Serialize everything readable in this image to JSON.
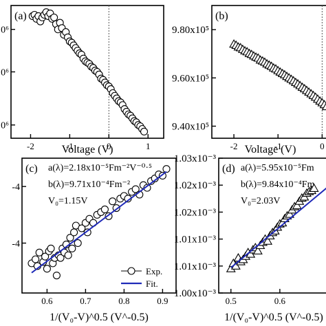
{
  "chart_data": [
    {
      "panel": "(a)",
      "type": "scatter",
      "marker": "circle",
      "xlabel": "Voltage (V)",
      "ylabel": "",
      "xlim": [
        -2.5,
        1.4
      ],
      "ylim": [
        0.0,
        1.0
      ],
      "xticks": [
        "-2",
        "-1",
        "0",
        "1"
      ],
      "xtick_values": [
        -2,
        -1,
        0,
        1
      ],
      "yticks_partial": [
        "0⁶",
        "0⁶",
        "0⁶"
      ],
      "ytick_values": [
        0.82,
        0.5,
        0.1
      ],
      "vline_at": 0,
      "series": [
        {
          "x": [
            -1.95,
            -1.9,
            -1.85,
            -1.8,
            -1.75,
            -1.7,
            -1.65,
            -1.6,
            -1.55,
            -1.5,
            -1.45,
            -1.4,
            -1.35,
            -1.3,
            -1.25,
            -1.2,
            -1.15,
            -1.1,
            -1.05,
            -1.0,
            -0.95,
            -0.9,
            -0.85,
            -0.8,
            -0.75,
            -0.7,
            -0.65,
            -0.6,
            -0.55,
            -0.5,
            -0.45,
            -0.4,
            -0.35,
            -0.3,
            -0.25,
            -0.2,
            -0.15,
            -0.1,
            -0.05,
            0.0,
            0.05,
            0.1,
            0.15,
            0.2,
            0.25,
            0.3,
            0.35,
            0.4,
            0.45,
            0.5,
            0.55,
            0.6,
            0.65,
            0.7,
            0.75,
            0.8,
            0.85,
            0.9
          ],
          "y": [
            0.92,
            0.93,
            0.9,
            0.92,
            0.88,
            0.91,
            0.93,
            0.95,
            0.92,
            0.94,
            0.9,
            0.91,
            0.86,
            0.82,
            0.87,
            0.83,
            0.78,
            0.8,
            0.76,
            0.73,
            0.72,
            0.7,
            0.68,
            0.66,
            0.64,
            0.63,
            0.6,
            0.58,
            0.57,
            0.56,
            0.54,
            0.53,
            0.51,
            0.5,
            0.48,
            0.45,
            0.44,
            0.42,
            0.4,
            0.39,
            0.37,
            0.34,
            0.32,
            0.3,
            0.28,
            0.27,
            0.25,
            0.22,
            0.2,
            0.18,
            0.17,
            0.15,
            0.13,
            0.12,
            0.1,
            0.09,
            0.07,
            0.05
          ]
        }
      ]
    },
    {
      "panel": "(b)",
      "type": "scatter",
      "marker": "triangle",
      "xlabel": "Voltage (V)",
      "ylabel": "",
      "xlim": [
        -2.5,
        0.15
      ],
      "ylim": [
        935000.0,
        990000.0
      ],
      "xticks": [
        "-2",
        "-1",
        "0"
      ],
      "xtick_values": [
        -2,
        -1,
        0
      ],
      "yticks": [
        "9.40x10⁵",
        "9.60x10⁵",
        "9.80x10⁵"
      ],
      "ytick_values": [
        940000.0,
        960000.0,
        980000.0
      ],
      "vline_at": 0,
      "series": [
        {
          "x": [
            -2.0,
            -1.95,
            -1.9,
            -1.85,
            -1.8,
            -1.75,
            -1.7,
            -1.65,
            -1.6,
            -1.55,
            -1.5,
            -1.45,
            -1.4,
            -1.35,
            -1.3,
            -1.25,
            -1.2,
            -1.15,
            -1.1,
            -1.05,
            -1.0,
            -0.95,
            -0.9,
            -0.85,
            -0.8,
            -0.75,
            -0.7,
            -0.65,
            -0.6,
            -0.55,
            -0.5,
            -0.45,
            -0.4,
            -0.35,
            -0.3,
            -0.25,
            -0.2,
            -0.15,
            -0.1,
            -0.05,
            0.0,
            0.05,
            0.1
          ],
          "y": [
            974000,
            973500,
            972800,
            972500,
            971800,
            971200,
            970800,
            970100,
            969700,
            969100,
            968600,
            968200,
            967400,
            967000,
            966500,
            965800,
            965300,
            964800,
            964100,
            963700,
            963000,
            962400,
            961800,
            961300,
            960600,
            960000,
            959400,
            958800,
            958100,
            957500,
            956800,
            956100,
            955500,
            954800,
            954100,
            953400,
            952700,
            952000,
            951200,
            950400,
            949700,
            948900,
            948100
          ]
        }
      ]
    },
    {
      "panel": "(c)",
      "type": "scatter",
      "marker": "circle",
      "xlabel": "1/(V₀-V)^0.5  (V^-0.5)",
      "ylabel": "",
      "xlim": [
        0.535,
        0.935
      ],
      "ylim": [
        0.0,
        1.0
      ],
      "xticks": [
        "0.6",
        "0.7",
        "0.8",
        "0.9"
      ],
      "xtick_values": [
        0.6,
        0.7,
        0.8,
        0.9
      ],
      "yticks_partial": [
        "-4",
        "-4"
      ],
      "ytick_values": [
        0.79,
        0.37
      ],
      "annotations": [
        "a(λ)=2.18x10⁻⁵Fm⁻²V⁻⁰·⁵",
        "b(λ)=9.71x10⁻⁴Fm⁻²",
        "V₀=1.15V"
      ],
      "legend": {
        "position": "bottom-right",
        "entries": [
          "Exp.",
          "Fit."
        ]
      },
      "series": [
        {
          "name": "Exp.",
          "x": [
            0.56,
            0.57,
            0.575,
            0.58,
            0.59,
            0.595,
            0.6,
            0.605,
            0.61,
            0.615,
            0.62,
            0.625,
            0.63,
            0.635,
            0.64,
            0.645,
            0.65,
            0.655,
            0.66,
            0.665,
            0.67,
            0.675,
            0.68,
            0.69,
            0.7,
            0.705,
            0.71,
            0.72,
            0.73,
            0.74,
            0.75,
            0.76,
            0.77,
            0.78,
            0.79,
            0.8,
            0.81,
            0.82,
            0.83,
            0.84,
            0.85,
            0.86,
            0.87,
            0.88,
            0.89,
            0.9,
            0.91
          ],
          "y": [
            0.22,
            0.25,
            0.2,
            0.3,
            0.23,
            0.27,
            0.18,
            0.31,
            0.33,
            0.22,
            0.26,
            0.13,
            0.28,
            0.26,
            0.33,
            0.3,
            0.36,
            0.28,
            0.41,
            0.33,
            0.45,
            0.5,
            0.37,
            0.48,
            0.52,
            0.45,
            0.55,
            0.52,
            0.58,
            0.6,
            0.62,
            0.57,
            0.68,
            0.63,
            0.7,
            0.72,
            0.7,
            0.75,
            0.77,
            0.73,
            0.8,
            0.78,
            0.83,
            0.85,
            0.88,
            0.87,
            0.92
          ]
        },
        {
          "name": "Fit.",
          "type": "line",
          "x": [
            0.56,
            0.91
          ],
          "y": [
            0.15,
            0.9
          ]
        }
      ]
    },
    {
      "panel": "(d)",
      "type": "scatter",
      "marker": "triangle",
      "xlabel": "1/(V₀-V)^0.5  (V^-0.5)",
      "ylabel": "",
      "xlim": [
        0.475,
        0.7
      ],
      "ylim": [
        0.001005,
        0.00103
      ],
      "xticks": [
        "0.5",
        "0.6"
      ],
      "xtick_values": [
        0.5,
        0.6
      ],
      "yticks": [
        "1.00x10⁻³",
        "1.01x10⁻³",
        "1.01x10⁻³",
        "1.02x10⁻³",
        "1.02x10⁻³",
        "1.03x10⁻³"
      ],
      "ytick_values": [
        0.001005,
        0.00101,
        0.001015,
        0.00102,
        0.001025,
        0.00103
      ],
      "annotations": [
        "a(λ)=5.95x10⁻⁵Fm",
        "b(λ)=9.84x10⁻⁴Fm",
        "V₀=2.03V"
      ],
      "series": [
        {
          "name": "Exp.",
          "x": [
            0.5,
            0.505,
            0.51,
            0.515,
            0.52,
            0.525,
            0.53,
            0.535,
            0.54,
            0.545,
            0.55,
            0.555,
            0.56,
            0.565,
            0.57,
            0.575,
            0.58,
            0.585,
            0.59,
            0.595,
            0.6,
            0.605,
            0.61,
            0.615,
            0.62,
            0.625,
            0.63,
            0.635,
            0.64,
            0.645,
            0.65,
            0.655,
            0.66,
            0.665,
            0.67
          ],
          "y": [
            0.0010095,
            0.0010105,
            0.00101,
            0.0010115,
            0.0010108,
            0.0010112,
            0.0010118,
            0.0010125,
            0.0010122,
            0.001013,
            0.0010134,
            0.0010128,
            0.0010138,
            0.0010144,
            0.001015,
            0.0010146,
            0.0010156,
            0.0010162,
            0.0010165,
            0.0010172,
            0.0010178,
            0.001018,
            0.0010188,
            0.0010193,
            0.0010196,
            0.0010204,
            0.001021,
            0.0010212,
            0.001022,
            0.0010226,
            0.0010228,
            0.0010235,
            0.0010238,
            0.001024,
            0.0010244
          ]
        },
        {
          "name": "Fit.",
          "type": "line",
          "x": [
            0.5,
            0.7
          ],
          "y": [
            0.0010097,
            0.0010248
          ]
        }
      ]
    }
  ],
  "style": {
    "marker_color": "#000000",
    "fit_color": "#1f2ab8",
    "axis_color": "#000000",
    "zero_line_color": "#555555"
  }
}
